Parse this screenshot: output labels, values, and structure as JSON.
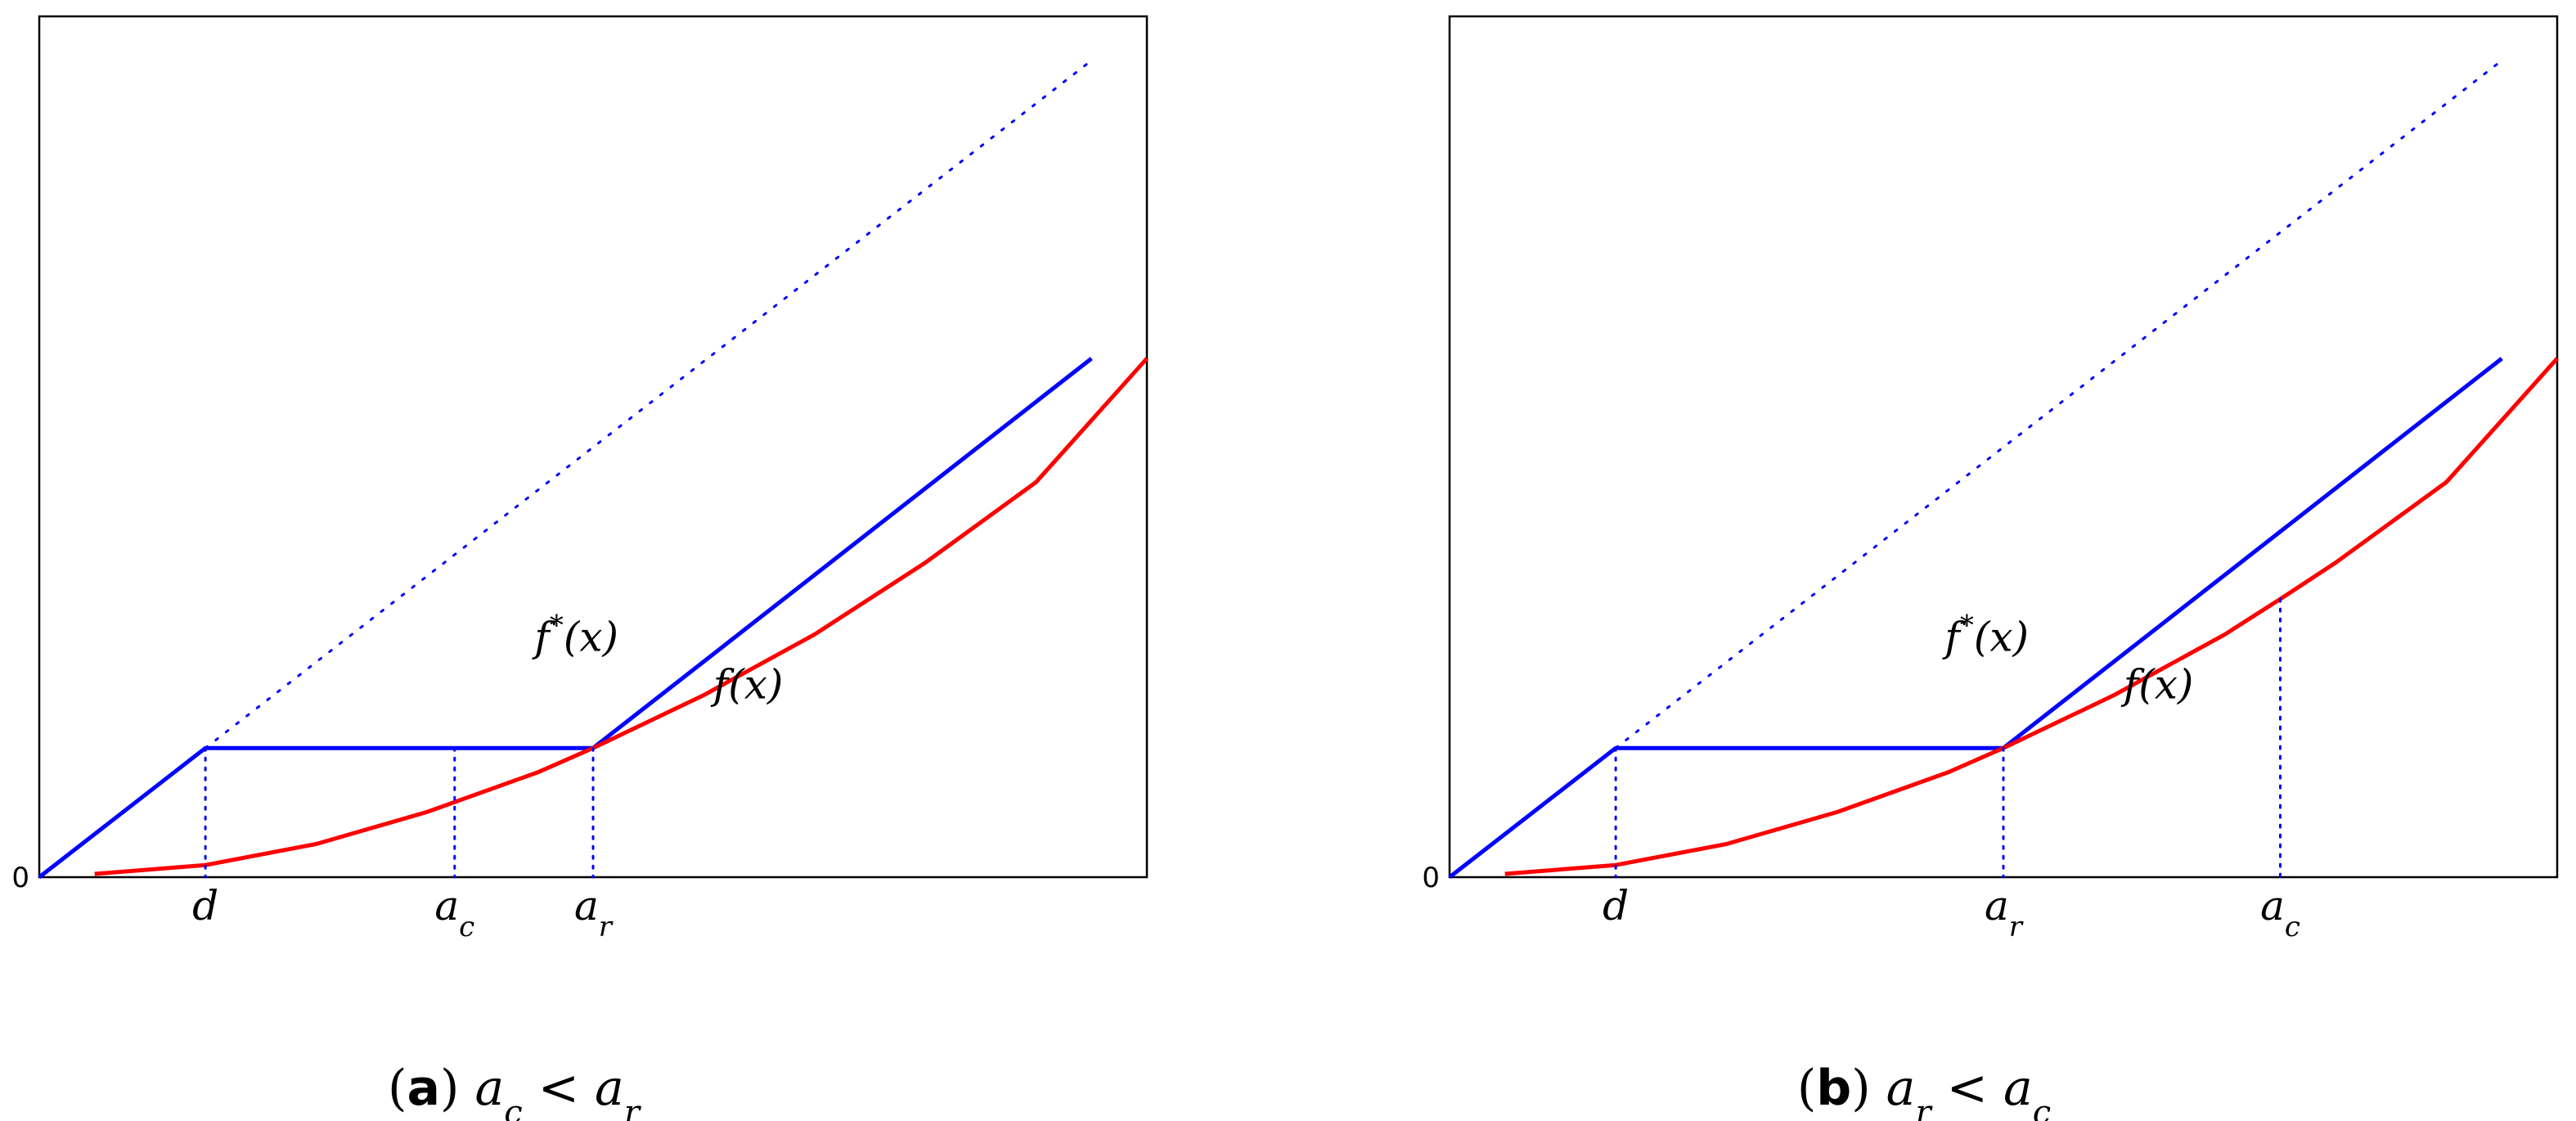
{
  "chart_data": [
    {
      "type": "line",
      "caption": {
        "tag": "(a)",
        "expr": "a_c < a_r"
      },
      "axes": {
        "xlim": [
          0,
          10
        ],
        "ylim": [
          0,
          7.8
        ],
        "y_tick_label": "0",
        "grid": false
      },
      "markers": [
        {
          "name": "d",
          "x": 1.5
        },
        {
          "name": "a_c",
          "x": 3.75
        },
        {
          "name": "a_r",
          "x": 5.0
        }
      ],
      "series": [
        {
          "name": "f*(x)",
          "color": "#0000ff",
          "style": "solid",
          "x": [
            0,
            1.5,
            5.0,
            9.5
          ],
          "y": [
            0,
            1.17,
            1.17,
            4.7
          ]
        },
        {
          "name": "f(x)",
          "color": "#ff0000",
          "style": "solid",
          "x": [
            0.5,
            1.5,
            2.5,
            3.5,
            4.5,
            5.0,
            6,
            7,
            8,
            9,
            10
          ],
          "y": [
            0.03,
            0.11,
            0.3,
            0.59,
            0.95,
            1.17,
            1.65,
            2.2,
            2.85,
            3.58,
            4.7
          ]
        },
        {
          "name": "",
          "color": "#0000ff",
          "style": "dotted",
          "x": [
            1.5,
            9.5
          ],
          "y": [
            1.17,
            7.4
          ]
        }
      ],
      "annotations": [
        {
          "text": "f*(x)",
          "x": 4.85,
          "y": 2.05
        },
        {
          "text": "f(x)",
          "x": 6.4,
          "y": 1.62
        }
      ]
    },
    {
      "type": "line",
      "caption": {
        "tag": "(b)",
        "expr": "a_r < a_c"
      },
      "axes": {
        "xlim": [
          0,
          10
        ],
        "ylim": [
          0,
          7.8
        ],
        "y_tick_label": "0",
        "grid": false
      },
      "markers": [
        {
          "name": "d",
          "x": 1.5
        },
        {
          "name": "a_r",
          "x": 5.0
        },
        {
          "name": "a_c",
          "x": 7.5
        }
      ],
      "series": [
        {
          "name": "f*(x)",
          "color": "#0000ff",
          "style": "solid",
          "x": [
            0,
            1.5,
            5.0,
            9.5
          ],
          "y": [
            0,
            1.17,
            1.17,
            4.7
          ]
        },
        {
          "name": "f(x)",
          "color": "#ff0000",
          "style": "solid",
          "x": [
            0.5,
            1.5,
            2.5,
            3.5,
            4.5,
            5.0,
            6,
            7,
            7.5,
            8,
            9,
            10
          ],
          "y": [
            0.03,
            0.11,
            0.3,
            0.59,
            0.95,
            1.17,
            1.65,
            2.2,
            2.52,
            2.85,
            3.58,
            4.7
          ]
        },
        {
          "name": "",
          "color": "#0000ff",
          "style": "dotted",
          "x": [
            1.5,
            9.5
          ],
          "y": [
            1.17,
            7.4
          ]
        }
      ],
      "annotations": [
        {
          "text": "f*(x)",
          "x": 4.85,
          "y": 2.05
        },
        {
          "text": "f(x)",
          "x": 6.4,
          "y": 1.62
        }
      ]
    }
  ]
}
